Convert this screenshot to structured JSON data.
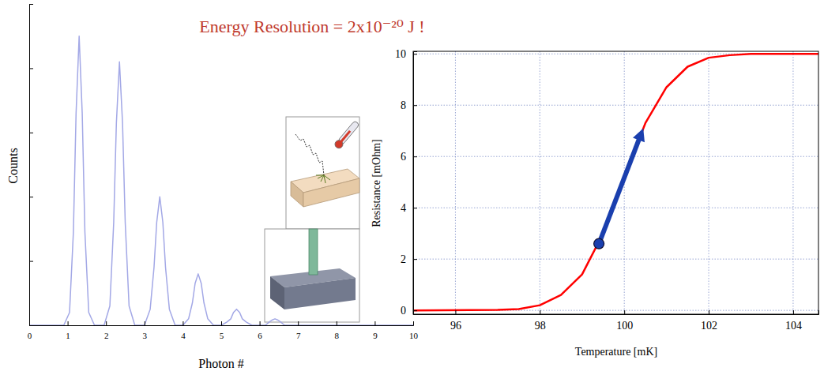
{
  "chart_data": [
    {
      "type": "line",
      "x_label": "Photon #",
      "y_label": "Counts",
      "x": [
        0,
        0.9,
        1.05,
        1.15,
        1.22,
        1.3,
        1.38,
        1.45,
        1.55,
        1.7,
        1.95,
        2.1,
        2.2,
        2.27,
        2.35,
        2.43,
        2.5,
        2.6,
        2.75,
        3.0,
        3.15,
        3.25,
        3.32,
        3.4,
        3.48,
        3.55,
        3.65,
        3.8,
        4.0,
        4.15,
        4.25,
        4.32,
        4.4,
        4.48,
        4.55,
        4.65,
        4.8,
        5.0,
        5.15,
        5.25,
        5.32,
        5.4,
        5.48,
        5.55,
        5.65,
        5.8,
        6.0,
        6.15,
        6.25,
        6.32,
        6.4,
        6.48,
        6.55,
        6.65,
        6.8,
        10
      ],
      "values": [
        0,
        0,
        4,
        29,
        66,
        90,
        66,
        29,
        4,
        0,
        0,
        6,
        32,
        63,
        82,
        63,
        32,
        6,
        0,
        0,
        5,
        18,
        32,
        40,
        32,
        18,
        5,
        0,
        0,
        2,
        7,
        13,
        16,
        13,
        7,
        2,
        0,
        0,
        1,
        2,
        4,
        5,
        4,
        2,
        1,
        0,
        0,
        0,
        1,
        1.6,
        2,
        1.6,
        1,
        0,
        0,
        0
      ],
      "color": "#a3a8e6",
      "xlim": [
        0,
        10
      ],
      "ylim": [
        0,
        100
      ],
      "xticks": [
        0,
        1,
        2,
        3,
        4,
        5,
        6,
        7,
        8,
        9,
        10
      ],
      "yticks": [
        0,
        20,
        40,
        60,
        80,
        100
      ],
      "tick_labels": "x",
      "annotations": [
        {
          "text": "Energy Resolution = 2x10⁻²⁰ J !",
          "color": "#c0392b"
        }
      ]
    },
    {
      "type": "line",
      "x_label": "Temperature [mK]",
      "y_label": "Resistance [mOhm]",
      "x": [
        95,
        97,
        97.5,
        98,
        98.5,
        99,
        99.5,
        100,
        100.5,
        101,
        101.5,
        102,
        102.5,
        103,
        104,
        104.6
      ],
      "values": [
        0,
        0.02,
        0.05,
        0.2,
        0.6,
        1.4,
        3.0,
        5.2,
        7.3,
        8.7,
        9.5,
        9.85,
        9.95,
        10,
        10,
        10
      ],
      "color": "#ff0000",
      "xlim": [
        95,
        104.6
      ],
      "ylim": [
        -0.15,
        10.1
      ],
      "xticks": [
        96,
        98,
        100,
        102,
        104
      ],
      "yticks": [
        0,
        2,
        4,
        6,
        8,
        10
      ],
      "grid": true,
      "arrow": {
        "x": [
          99.4,
          100.45
        ],
        "y": [
          2.6,
          7.1
        ],
        "color": "#1a3fae",
        "marker": "circle"
      }
    }
  ]
}
